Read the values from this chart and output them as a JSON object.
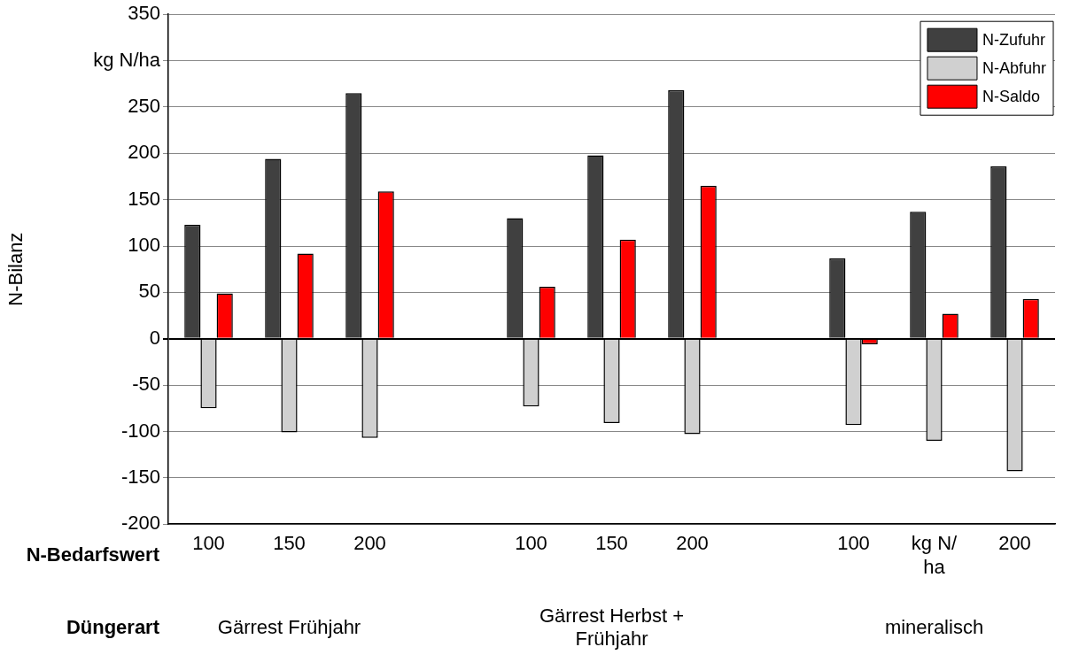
{
  "chart_data": {
    "type": "bar",
    "ylabel": "N-Bilanz",
    "categories": [
      "100",
      "150",
      "200",
      null,
      "100",
      "150",
      "200",
      null,
      "100",
      "kg N/ ha",
      "200"
    ],
    "series": [
      {
        "name": "N-Zufuhr",
        "color": "#404040",
        "values": [
          123,
          194,
          265,
          null,
          130,
          198,
          268,
          null,
          87,
          137,
          186
        ]
      },
      {
        "name": "N-Abfuhr",
        "color": "#d0d0d0",
        "values": [
          -75,
          -101,
          -107,
          null,
          -73,
          -91,
          -103,
          null,
          -93,
          -110,
          -143
        ]
      },
      {
        "name": "N-Saldo",
        "color": "#ff0000",
        "values": [
          49,
          92,
          159,
          null,
          56,
          107,
          165,
          null,
          -6,
          27,
          43
        ]
      }
    ],
    "ylim": [
      -200,
      350
    ],
    "yticks": [
      -200,
      -150,
      -100,
      -50,
      0,
      50,
      100,
      150,
      200,
      250,
      {
        "value": 300,
        "label": "kg N/ha"
      },
      350
    ],
    "grid": "y",
    "legend": "top right",
    "annotations": [
      "N-Bedarfswert",
      "Düngerart",
      "Gärrest Frühjahr",
      "Gärrest Herbst + Frühjahr",
      "mineralisch"
    ]
  }
}
